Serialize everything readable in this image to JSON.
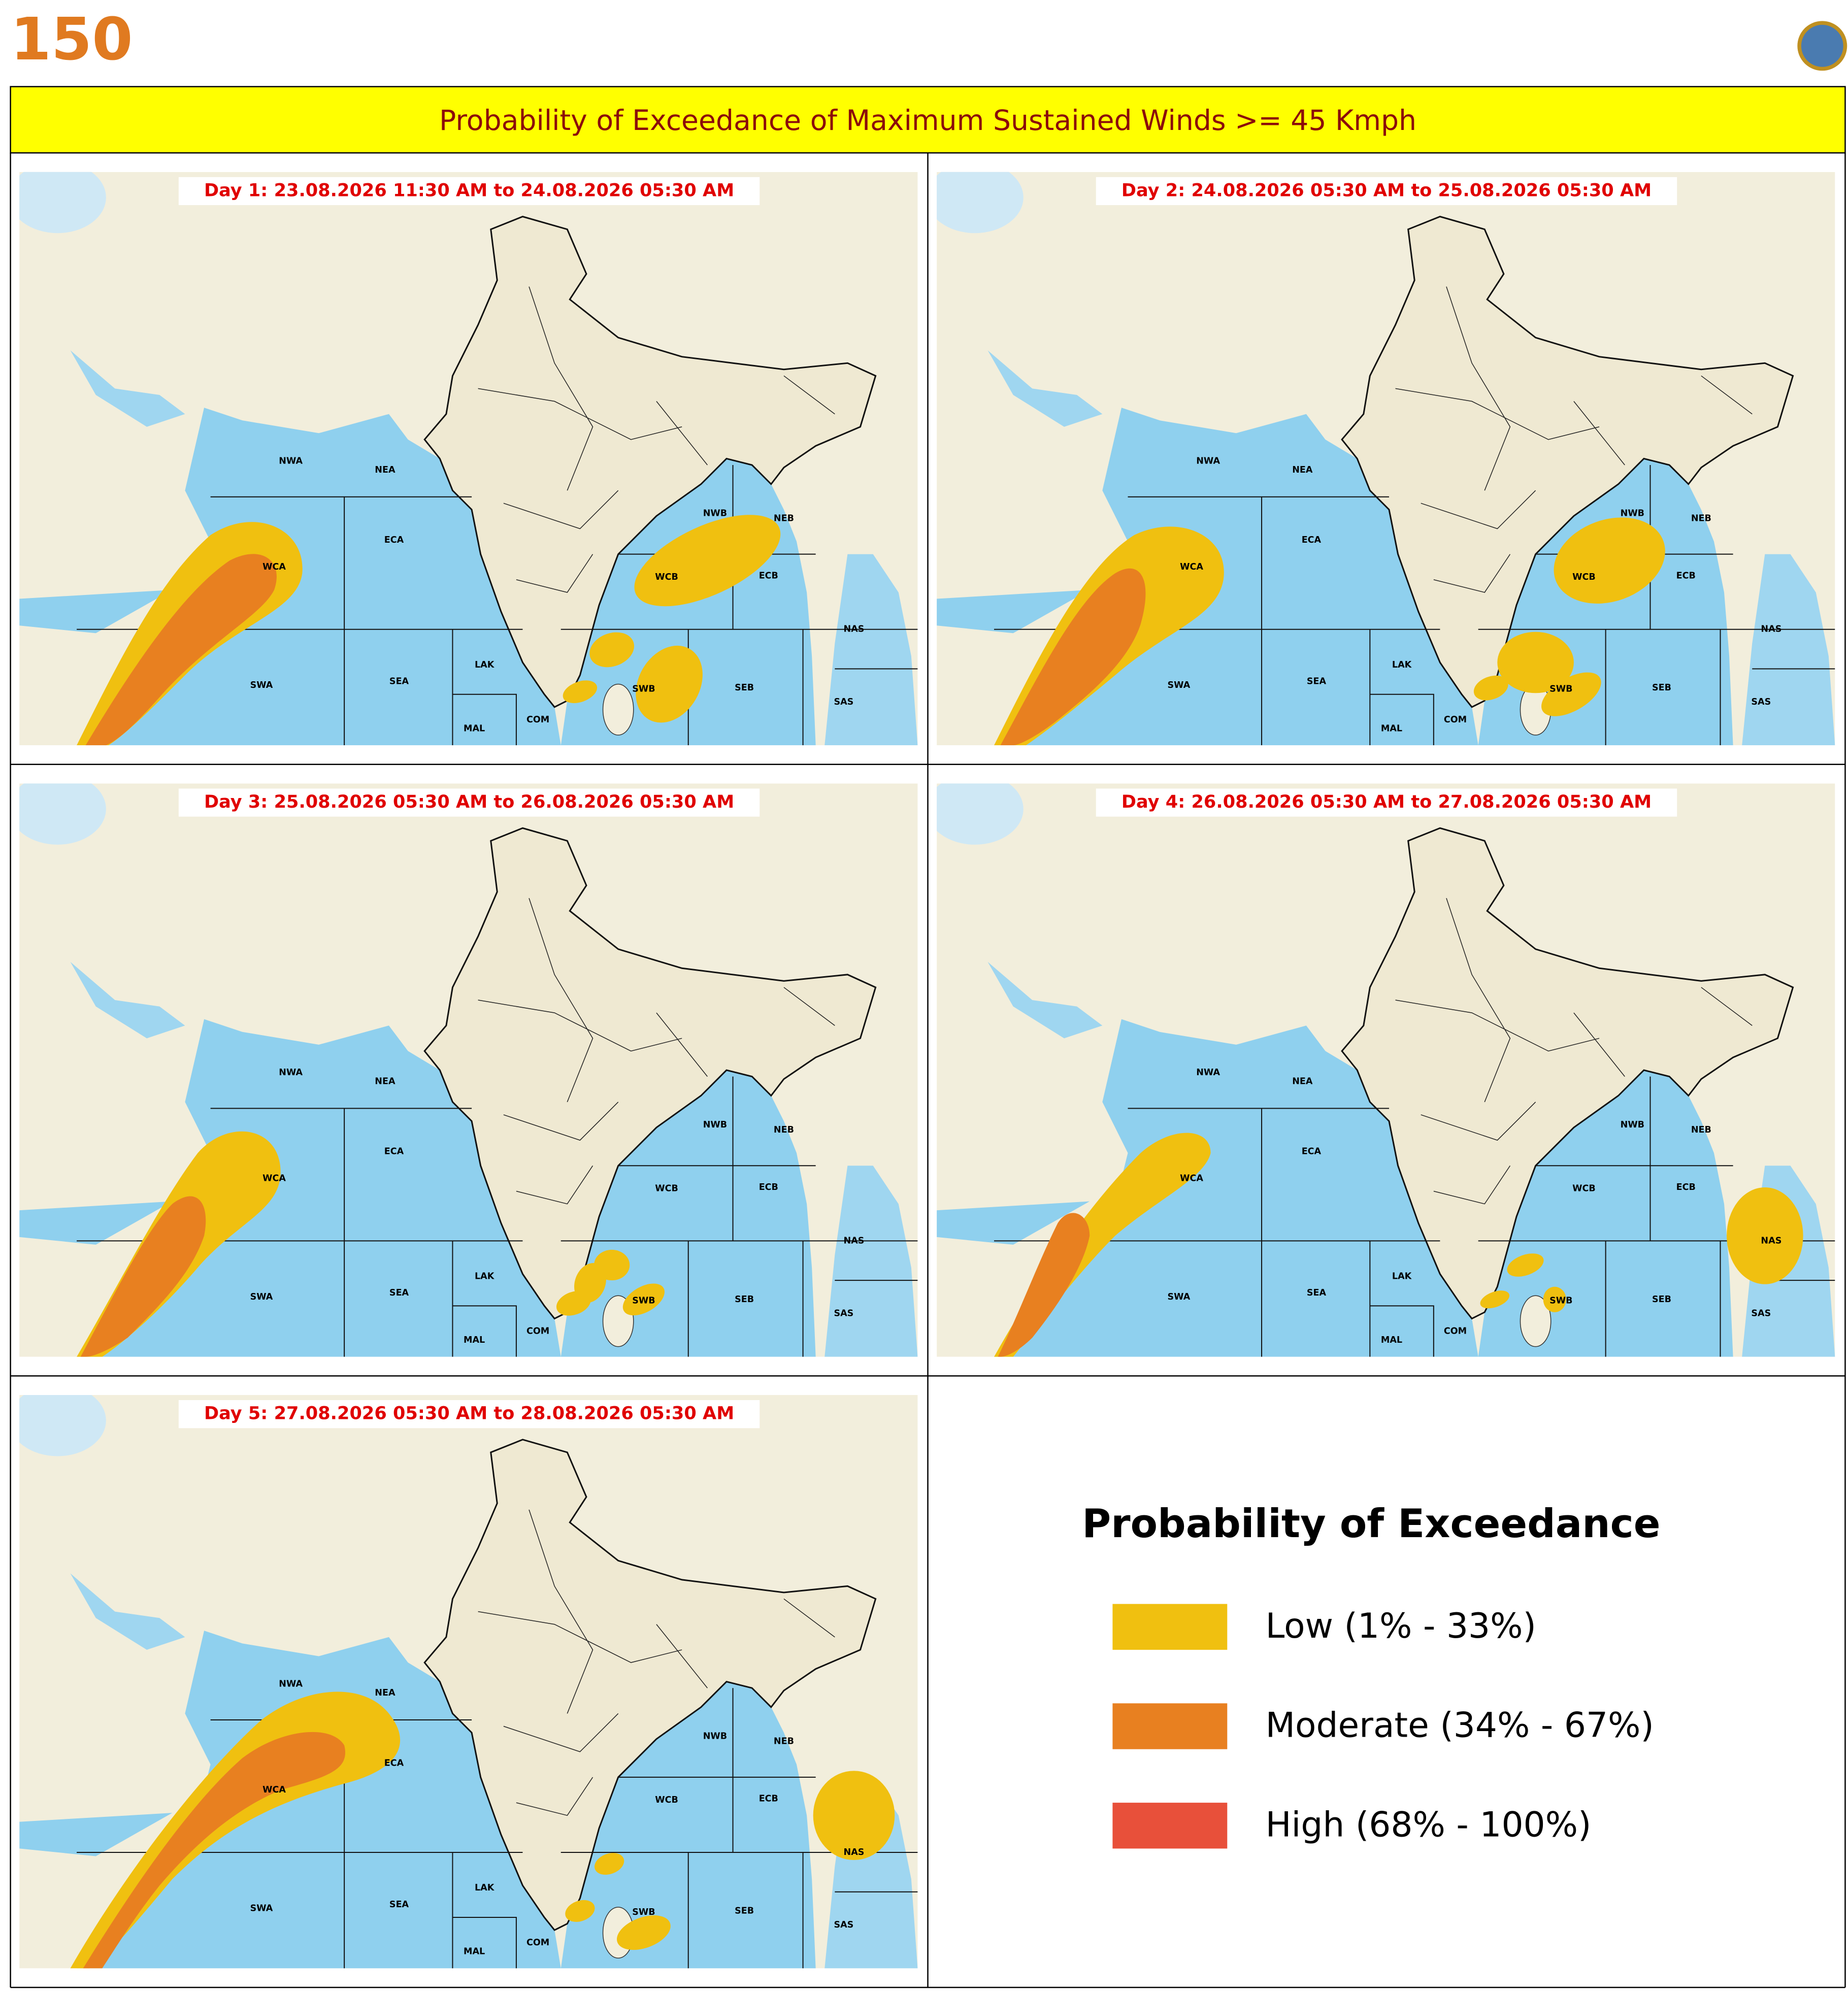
{
  "header": {
    "logo": "150",
    "title": "Probability of Exceedance of Maximum Sustained Winds >= 45 Kmph"
  },
  "panels": [
    {
      "title": "Day 1: 23.08.2026 11:30 AM to 24.08.2026 05:30 AM"
    },
    {
      "title": "Day 2: 24.08.2026 05:30 AM to 25.08.2026 05:30 AM"
    },
    {
      "title": "Day 3: 25.08.2026 05:30 AM to 26.08.2026 05:30 AM"
    },
    {
      "title": "Day 4: 26.08.2026 05:30 AM to 27.08.2026 05:30 AM"
    },
    {
      "title": "Day 5: 27.08.2026 05:30 AM to 28.08.2026 05:30 AM"
    }
  ],
  "regions": [
    "NWA",
    "NEA",
    "ECA",
    "WCA",
    "SWA",
    "SEA",
    "LAK",
    "MAL",
    "COM",
    "NWB",
    "NEB",
    "WCB",
    "ECB",
    "SWB",
    "SEB",
    "NAS",
    "SAS"
  ],
  "legend": {
    "title": "Probability of Exceedance",
    "items": [
      {
        "label": "Low (1% - 33%)",
        "color": "#f0c010"
      },
      {
        "label": "Moderate (34% - 67%)",
        "color": "#e88020"
      },
      {
        "label": "High (68% - 100%)",
        "color": "#e8503a"
      }
    ]
  }
}
